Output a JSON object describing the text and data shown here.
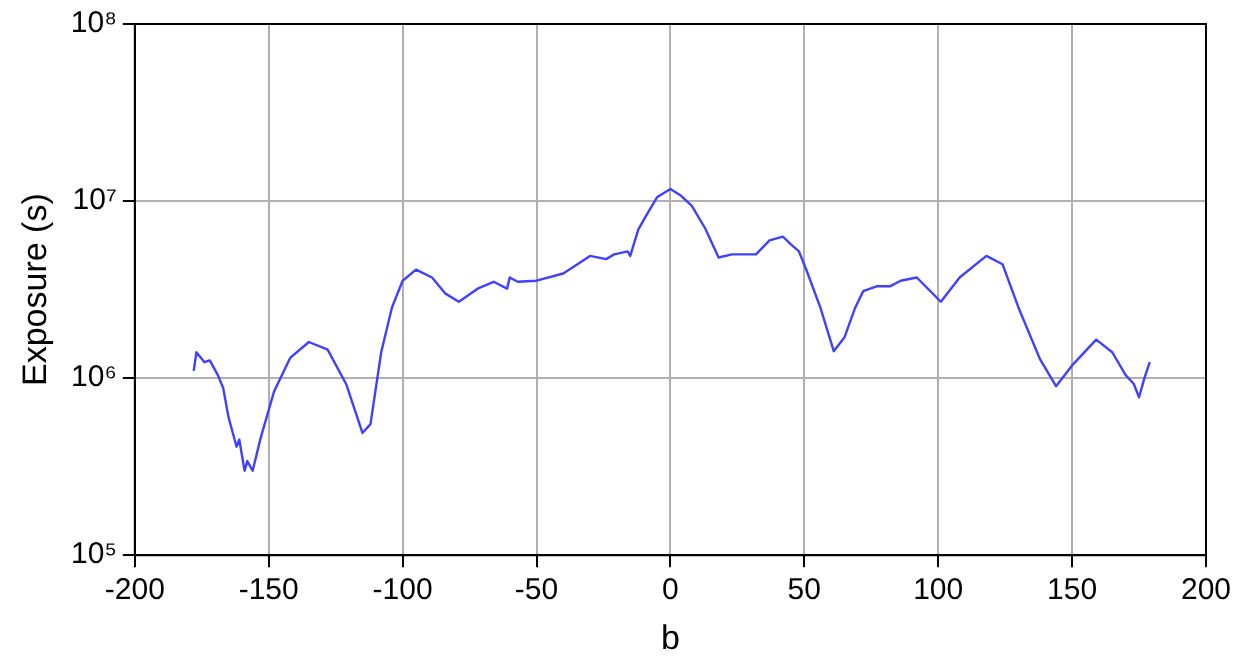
{
  "chart_data": {
    "type": "line",
    "xlabel": "b",
    "ylabel": "Exposure (s)",
    "log": "y",
    "grid": true,
    "color": "#4040ff",
    "xlim": [
      -200,
      200
    ],
    "xticks": [
      -200,
      -150,
      -100,
      -50,
      0,
      50,
      100,
      150,
      200
    ],
    "ylim": [
      100000,
      100000000
    ],
    "yticks": [
      {
        "value": 100000,
        "label": "10⁵"
      },
      {
        "value": 1000000,
        "label": "10⁶"
      },
      {
        "value": 10000000,
        "label": "10⁷"
      },
      {
        "value": 100000000,
        "label": "10⁸"
      }
    ],
    "x": [
      -178,
      -177,
      -174,
      -172,
      -169,
      -167,
      -165,
      -162,
      -161,
      -159,
      -158,
      -156,
      -153,
      -148,
      -142,
      -135,
      -128,
      -121,
      -115,
      -112,
      -108,
      -104,
      -100,
      -95,
      -89,
      -84,
      -79,
      -72,
      -66,
      -61,
      -60,
      -57,
      -50,
      -40,
      -30,
      -24,
      -21,
      -16,
      -15,
      -12,
      -9,
      -5,
      0,
      4,
      8,
      13,
      18,
      23,
      32,
      37,
      42,
      45,
      48,
      51,
      56,
      61,
      65,
      69,
      72,
      77,
      82,
      86,
      92,
      101,
      108,
      118,
      124,
      130,
      138,
      144,
      150,
      159,
      165,
      170,
      173,
      175,
      177,
      179
    ],
    "values": [
      1100000,
      1400000,
      1230000,
      1260000,
      1040000,
      880000,
      600000,
      410000,
      450000,
      300000,
      340000,
      300000,
      460000,
      840000,
      1300000,
      1600000,
      1450000,
      920000,
      490000,
      550000,
      1400000,
      2500000,
      3550000,
      4100000,
      3700000,
      3000000,
      2700000,
      3200000,
      3500000,
      3200000,
      3700000,
      3500000,
      3550000,
      3900000,
      4900000,
      4700000,
      5000000,
      5200000,
      4900000,
      6900000,
      8300000,
      10500000,
      11700000,
      10700000,
      9400000,
      7000000,
      4800000,
      5000000,
      5000000,
      6000000,
      6300000,
      5700000,
      5200000,
      4000000,
      2500000,
      1420000,
      1700000,
      2500000,
      3100000,
      3300000,
      3300000,
      3550000,
      3700000,
      2700000,
      3700000,
      4900000,
      4400000,
      2500000,
      1280000,
      900000,
      1180000,
      1650000,
      1400000,
      1040000,
      930000,
      780000,
      1000000,
      1230000
    ]
  }
}
